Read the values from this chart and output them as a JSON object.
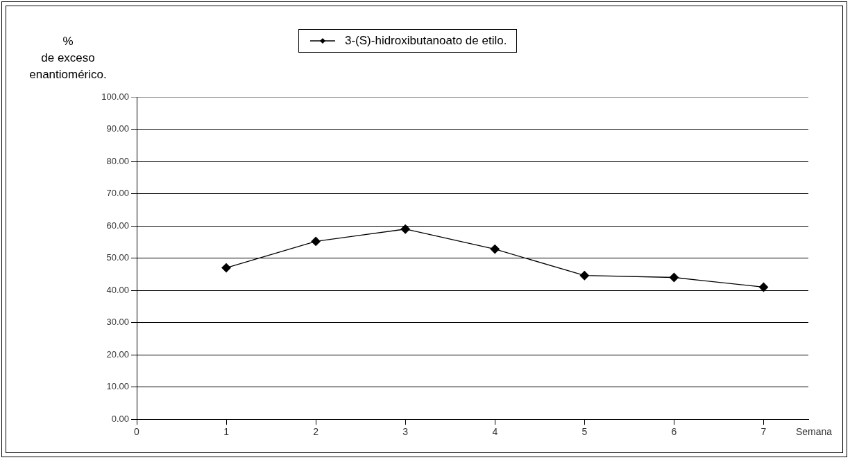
{
  "chart_data": {
    "type": "line",
    "ylabel": "% de exceso enantiomérico.",
    "xlabel": "Semana",
    "x": [
      1,
      2,
      3,
      4,
      5,
      6,
      7
    ],
    "series": [
      {
        "name": "3-(S)-hidroxibutanoato de etilo.",
        "color": "#000000",
        "values": [
          47.0,
          55.2,
          59.0,
          52.8,
          44.6,
          44.0,
          41.0
        ]
      }
    ],
    "xlim": [
      0,
      7.5
    ],
    "xticks": [
      0,
      1,
      2,
      3,
      4,
      5,
      6,
      7
    ],
    "ylim": [
      0,
      100
    ],
    "yticks": [
      {
        "value": 0,
        "label": "0.00"
      },
      {
        "value": 10,
        "label": "10.00"
      },
      {
        "value": 20,
        "label": "20.00"
      },
      {
        "value": 30,
        "label": "30.00"
      },
      {
        "value": 40,
        "label": "40.00"
      },
      {
        "value": 50,
        "label": "50.00"
      },
      {
        "value": 60,
        "label": "60.00"
      },
      {
        "value": 70,
        "label": "70.00"
      },
      {
        "value": 80,
        "label": "80.00"
      },
      {
        "value": 90,
        "label": "90.00"
      },
      {
        "value": 100,
        "label": "100.00"
      }
    ],
    "grid": "y",
    "legend": "top",
    "marker": "diamond",
    "line_style": "solid"
  }
}
